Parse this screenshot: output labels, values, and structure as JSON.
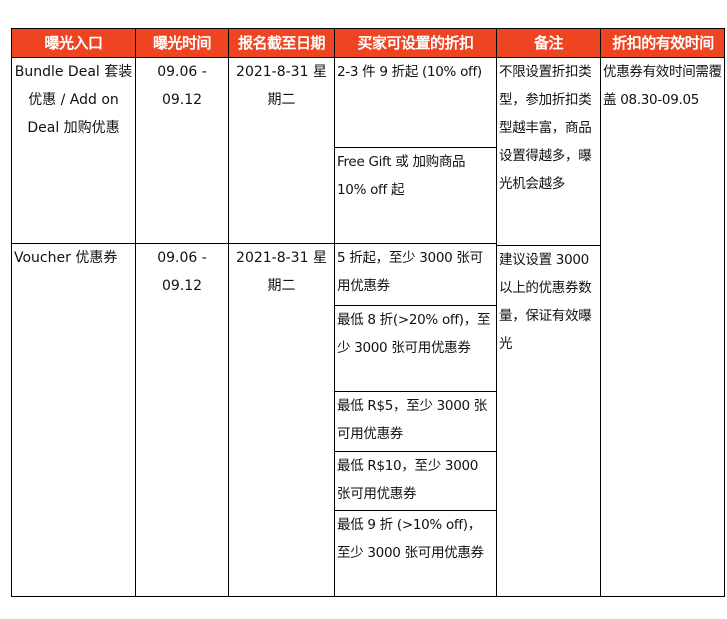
{
  "header": [
    "曝光入口",
    "曝光时间",
    "报名截至日期",
    "买家可设置的折扣",
    "备注",
    "折扣的有效时间"
  ],
  "colors": {
    "header_bg": "#EE4422",
    "header_text": "#FFFFFF",
    "border": "#000000"
  },
  "rows": [
    {
      "entry": "Bundle Deal 套装优惠 / Add on Deal 加购优惠",
      "period": "09.06 - 09.12",
      "deadline": "2021-8-31 星期二",
      "discounts": [
        "2-3 件 9 折起 (10% off)",
        "Free Gift 或 加购商品 10% off 起"
      ],
      "remark": "不限设置折扣类型，参加折扣类型越丰富，商品设置得越多，曝光机会越多"
    },
    {
      "entry": "Voucher 优惠券",
      "period": "09.06 - 09.12",
      "deadline": "2021-8-31 星期二",
      "discounts": [
        "5 折起，至少 3000 张可用优惠券",
        "最低 8 折(>20% off)，至少 3000 张可用优惠券",
        "最低 R$5，至少 3000 张可用优惠券",
        "最低 R$10，至少 3000 张可用优惠券",
        "最低 9 折 (>10% off)，至少 3000 张可用优惠券"
      ],
      "remark": "建议设置 3000 以上的优惠券数量，保证有效曝光"
    }
  ],
  "validity": "优惠券有效时间需覆盖 08.30-09.05"
}
